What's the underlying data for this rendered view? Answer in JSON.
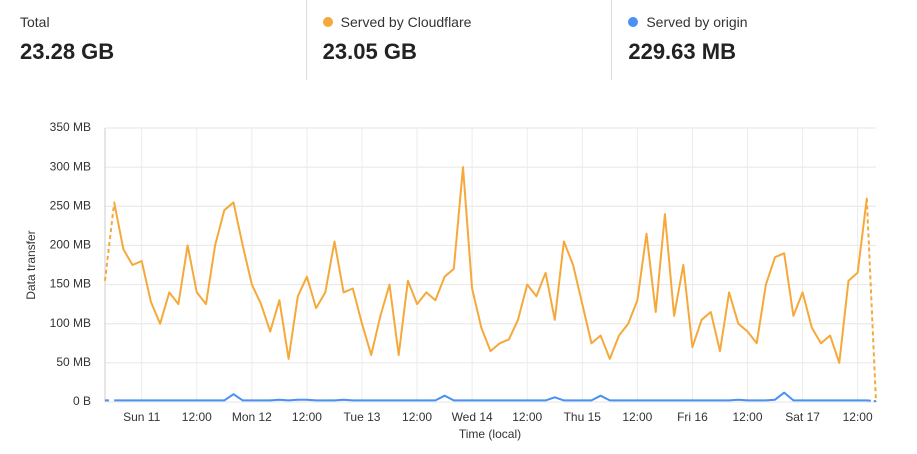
{
  "stats": [
    {
      "label": "Total",
      "value": "23.28 GB"
    },
    {
      "label": "Served by Cloudflare",
      "value": "23.05 GB",
      "color": "#f6a93b"
    },
    {
      "label": "Served by origin",
      "value": "229.63 MB",
      "color": "#4a90f5"
    }
  ],
  "chart_data": {
    "type": "line",
    "y_label": "Data transfer",
    "x_label": "Time (local)",
    "ylim": [
      0,
      350
    ],
    "yticks": [
      {
        "value": 0,
        "label": "0 B"
      },
      {
        "value": 50,
        "label": "50 MB"
      },
      {
        "value": 100,
        "label": "100 MB"
      },
      {
        "value": 150,
        "label": "150 MB"
      },
      {
        "value": 200,
        "label": "200 MB"
      },
      {
        "value": 250,
        "label": "250 MB"
      },
      {
        "value": 300,
        "label": "300 MB"
      },
      {
        "value": 350,
        "label": "350 MB"
      }
    ],
    "xlim": [
      0,
      168
    ],
    "xticks": [
      {
        "value": 8,
        "label": "Sun 11"
      },
      {
        "value": 20,
        "label": "12:00"
      },
      {
        "value": 32,
        "label": "Mon 12"
      },
      {
        "value": 44,
        "label": "12:00"
      },
      {
        "value": 56,
        "label": "Tue 13"
      },
      {
        "value": 68,
        "label": "12:00"
      },
      {
        "value": 80,
        "label": "Wed 14"
      },
      {
        "value": 92,
        "label": "12:00"
      },
      {
        "value": 104,
        "label": "Thu 15"
      },
      {
        "value": 116,
        "label": "12:00"
      },
      {
        "value": 128,
        "label": "Fri 16"
      },
      {
        "value": 140,
        "label": "12:00"
      },
      {
        "value": 152,
        "label": "Sat 17"
      },
      {
        "value": 164,
        "label": "12:00"
      }
    ],
    "grid": true,
    "dashed_edges": true,
    "x": [
      0,
      2,
      4,
      6,
      8,
      10,
      12,
      14,
      16,
      18,
      20,
      22,
      24,
      26,
      28,
      30,
      32,
      34,
      36,
      38,
      40,
      42,
      44,
      46,
      48,
      50,
      52,
      54,
      56,
      58,
      60,
      62,
      64,
      66,
      68,
      70,
      72,
      74,
      76,
      78,
      80,
      82,
      84,
      86,
      88,
      90,
      92,
      94,
      96,
      98,
      100,
      102,
      104,
      106,
      108,
      110,
      112,
      114,
      116,
      118,
      120,
      122,
      124,
      126,
      128,
      130,
      132,
      134,
      136,
      138,
      140,
      142,
      144,
      146,
      148,
      150,
      152,
      154,
      156,
      158,
      160,
      162,
      164,
      166,
      168
    ],
    "series": [
      {
        "name": "Served by Cloudflare",
        "color": "#f6a93b",
        "values": [
          155,
          255,
          195,
          175,
          180,
          128,
          100,
          140,
          125,
          200,
          140,
          125,
          200,
          245,
          255,
          200,
          150,
          125,
          90,
          130,
          55,
          135,
          160,
          120,
          140,
          205,
          140,
          145,
          100,
          60,
          110,
          150,
          60,
          155,
          125,
          140,
          130,
          160,
          170,
          300,
          145,
          95,
          65,
          75,
          80,
          105,
          150,
          135,
          165,
          105,
          205,
          175,
          125,
          75,
          85,
          55,
          85,
          100,
          130,
          215,
          115,
          240,
          110,
          175,
          70,
          105,
          115,
          65,
          140,
          100,
          90,
          75,
          150,
          185,
          190,
          110,
          140,
          95,
          75,
          85,
          50,
          155,
          165,
          260,
          0
        ]
      },
      {
        "name": "Served by origin",
        "color": "#4a90f5",
        "values": [
          2,
          2,
          2,
          2,
          2,
          2,
          2,
          2,
          2,
          2,
          2,
          2,
          2,
          2,
          10,
          2,
          2,
          2,
          2,
          3,
          2,
          3,
          3,
          2,
          2,
          2,
          3,
          2,
          2,
          2,
          2,
          2,
          2,
          2,
          2,
          2,
          2,
          8,
          2,
          2,
          2,
          2,
          2,
          2,
          2,
          2,
          2,
          2,
          2,
          6,
          2,
          2,
          2,
          2,
          8,
          2,
          2,
          2,
          2,
          2,
          2,
          2,
          2,
          2,
          2,
          2,
          2,
          2,
          2,
          3,
          2,
          2,
          2,
          3,
          12,
          2,
          2,
          2,
          2,
          2,
          2,
          2,
          2,
          2,
          1
        ]
      }
    ]
  }
}
